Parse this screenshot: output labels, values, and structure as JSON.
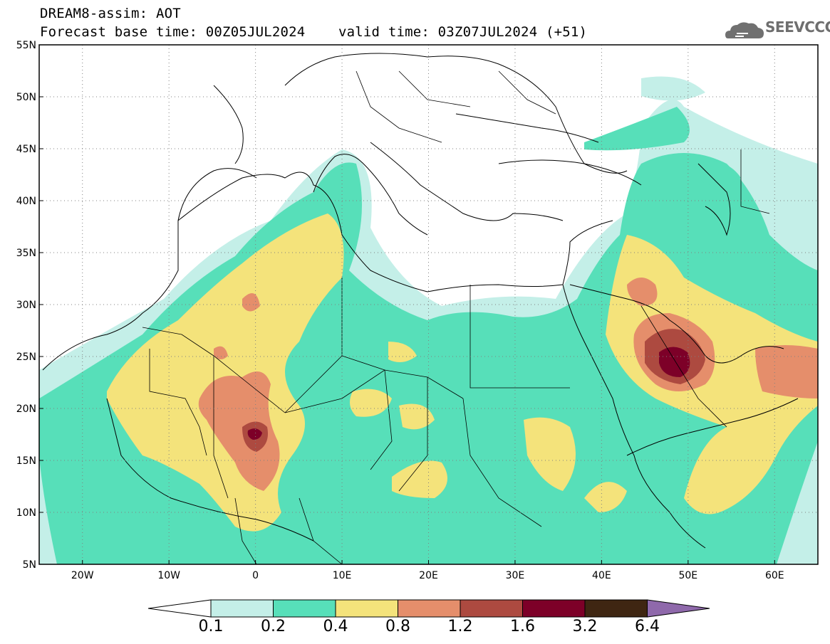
{
  "header": {
    "line1": "DREAM8-assim: AOT",
    "line2": "Forecast base time: 00Z05JUL2024    valid time: 03Z07JUL2024 (+51)",
    "logo_text": "SEEVCCC"
  },
  "map": {
    "lat_labels": [
      "55N",
      "50N",
      "45N",
      "40N",
      "35N",
      "30N",
      "25N",
      "20N",
      "15N",
      "10N",
      "5N"
    ],
    "lat_values": [
      55,
      50,
      45,
      40,
      35,
      30,
      25,
      20,
      15,
      10,
      5
    ],
    "lon_labels": [
      "20W",
      "10W",
      "0",
      "10E",
      "20E",
      "30E",
      "40E",
      "50E",
      "60E"
    ],
    "lon_values": [
      -20,
      -10,
      0,
      10,
      20,
      30,
      40,
      50,
      60
    ],
    "extent": {
      "lon_min": -25,
      "lon_max": 65,
      "lat_min": 5,
      "lat_max": 55
    }
  },
  "colorbar": {
    "labels": [
      "0.1",
      "0.2",
      "0.4",
      "0.8",
      "1.2",
      "1.6",
      "3.2",
      "6.4"
    ],
    "colors": [
      "#ffffff",
      "#c4efe8",
      "#57dfb9",
      "#f4e37b",
      "#e58e6b",
      "#ad4a40",
      "#7d0028",
      "#3f2612",
      "#8f69ab"
    ]
  }
}
